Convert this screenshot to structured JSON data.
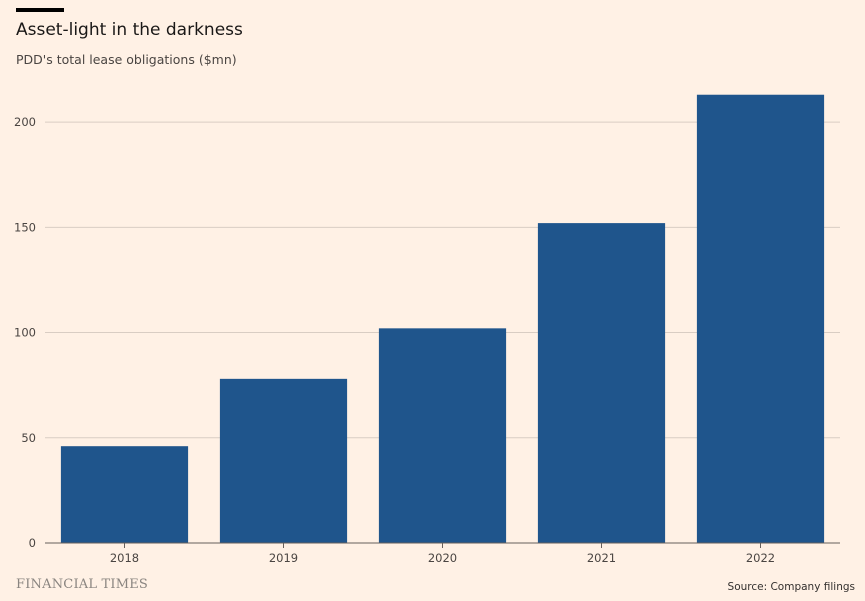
{
  "chart_data": {
    "type": "bar",
    "title": "Asset-light in the darkness",
    "subtitle": "PDD's total lease obligations ($mn)",
    "categories": [
      "2018",
      "2019",
      "2020",
      "2021",
      "2022"
    ],
    "values": [
      46,
      78,
      102,
      152,
      213
    ],
    "xlabel": "",
    "ylabel": "",
    "ylim": [
      0,
      220
    ],
    "yticks": [
      0,
      50,
      100,
      150,
      200
    ],
    "ytick_labels": [
      "0",
      "50",
      "100",
      "150",
      "200"
    ],
    "grid": true,
    "legend": "none"
  },
  "footer": {
    "logo_text": "FINANCIAL TIMES",
    "source": "Source: Company filings"
  },
  "colors": {
    "background": "#fff1e5",
    "bar": "#1f558c",
    "grid": "#d9cdc3",
    "axis": "#66605c"
  }
}
